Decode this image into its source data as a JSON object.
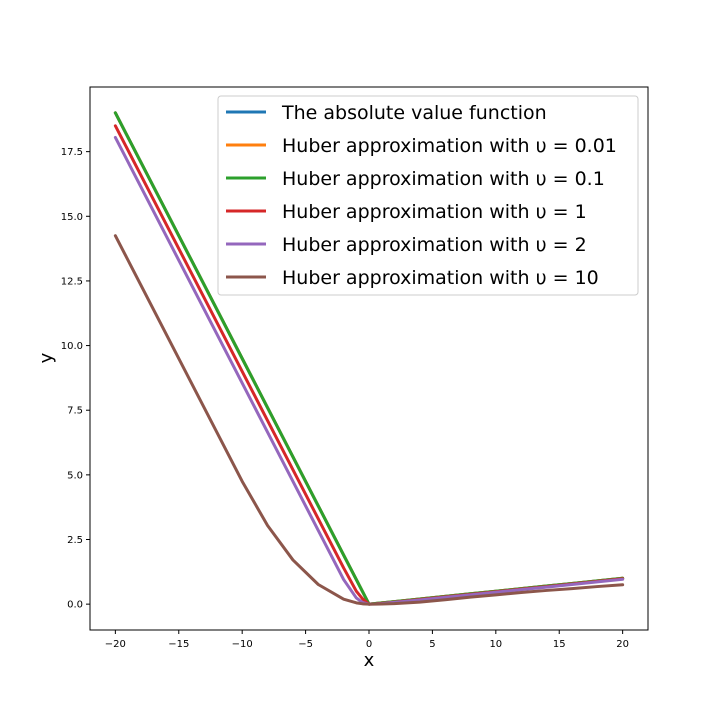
{
  "chart_data": {
    "type": "line",
    "title": "",
    "xlabel": "x",
    "ylabel": "y",
    "xlim": [
      -22,
      22
    ],
    "ylim": [
      -1.0,
      20.0
    ],
    "xticks": [
      -20,
      -15,
      -10,
      -5,
      0,
      5,
      10,
      15,
      20
    ],
    "xtick_labels": [
      "−20",
      "−15",
      "−10",
      "−5",
      "0",
      "5",
      "10",
      "15",
      "20"
    ],
    "yticks": [
      0.0,
      2.5,
      5.0,
      7.5,
      10.0,
      12.5,
      15.0,
      17.5
    ],
    "ytick_labels": [
      "0.0",
      "2.5",
      "5.0",
      "7.5",
      "10.0",
      "12.5",
      "15.0",
      "17.5"
    ],
    "grid": false,
    "legend_position": "top-right",
    "x": [
      -20,
      -18,
      -16,
      -14,
      -12,
      -10,
      -8,
      -6,
      -4,
      -2,
      -1,
      -0.5,
      0,
      0.5,
      1,
      2,
      4,
      6,
      8,
      10,
      12,
      14,
      16,
      18,
      20
    ],
    "series": [
      {
        "name": "The absolute value function",
        "color": "#1f77b4",
        "values": [
          19.0,
          17.1,
          15.2,
          13.3,
          11.4,
          9.5,
          7.6,
          5.7,
          3.8,
          1.9,
          0.95,
          0.475,
          0.0,
          0.025,
          0.05,
          0.1,
          0.2,
          0.3,
          0.4,
          0.5,
          0.6,
          0.7,
          0.8,
          0.9,
          1.0
        ]
      },
      {
        "name": "Huber approximation with υ = 0.01",
        "color": "#ff7f0e",
        "values": [
          19.0,
          17.1,
          15.2,
          13.3,
          11.4,
          9.5,
          7.6,
          5.7,
          3.8,
          1.9,
          0.95,
          0.475,
          0.0,
          0.025,
          0.05,
          0.1,
          0.2,
          0.3,
          0.4,
          0.5,
          0.6,
          0.7,
          0.8,
          0.9,
          1.0
        ]
      },
      {
        "name": "Huber approximation with υ = 0.1",
        "color": "#2ca02c",
        "values": [
          19.0,
          17.1,
          15.2,
          13.3,
          11.4,
          9.5,
          7.6,
          5.7,
          3.8,
          1.9,
          0.95,
          0.475,
          0.0,
          0.025,
          0.05,
          0.1,
          0.2,
          0.3,
          0.4,
          0.5,
          0.6,
          0.7,
          0.8,
          0.9,
          1.0
        ]
      },
      {
        "name": "Huber approximation with υ = 1",
        "color": "#d62728",
        "values": [
          18.5,
          16.6,
          14.7,
          12.8,
          10.9,
          9.0,
          7.1,
          5.2,
          3.3,
          1.4,
          0.5,
          0.2,
          0.0,
          0.01,
          0.03,
          0.08,
          0.18,
          0.28,
          0.38,
          0.48,
          0.58,
          0.68,
          0.78,
          0.88,
          0.98
        ]
      },
      {
        "name": "Huber approximation with υ = 2",
        "color": "#9467bd",
        "values": [
          18.05,
          16.15,
          14.25,
          12.35,
          10.45,
          8.55,
          6.65,
          4.75,
          2.85,
          0.95,
          0.24,
          0.06,
          0.0,
          0.005,
          0.02,
          0.07,
          0.16,
          0.26,
          0.36,
          0.46,
          0.56,
          0.66,
          0.76,
          0.86,
          0.96
        ]
      },
      {
        "name": "Huber approximation with υ = 10",
        "color": "#8c564b",
        "values": [
          14.25,
          12.35,
          10.45,
          8.55,
          6.65,
          4.75,
          3.04,
          1.71,
          0.76,
          0.19,
          0.05,
          0.012,
          0.0,
          0.001,
          0.005,
          0.02,
          0.08,
          0.17,
          0.27,
          0.36,
          0.45,
          0.53,
          0.6,
          0.68,
          0.75
        ]
      }
    ]
  }
}
